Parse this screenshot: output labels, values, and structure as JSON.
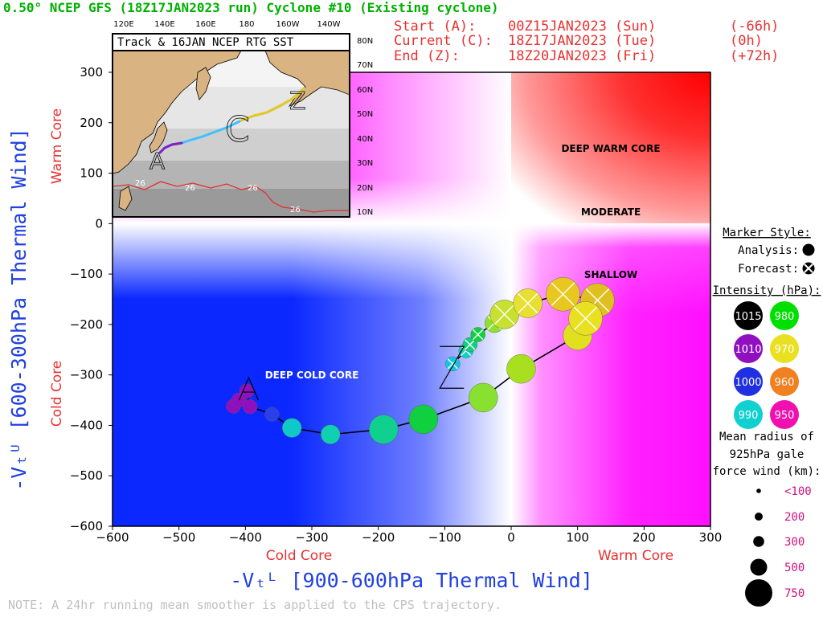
{
  "header": {
    "title": "0.50° NCEP GFS (18Z17JAN2023 run) Cyclone #10 (Existing cyclone)",
    "start": {
      "label": "Start (A):",
      "time": "00Z15JAN2023 (Sun)",
      "offset": "(-66h)"
    },
    "current": {
      "label": "Current (C):",
      "time": "18Z17JAN2023 (Tue)",
      "offset": "(0h)"
    },
    "end": {
      "label": "End (Z):",
      "time": "18Z20JAN2023 (Fri)",
      "offset": "(+72h)"
    }
  },
  "axes": {
    "xlabel": "-Vₜᴸ [900-600hPa Thermal Wind]",
    "ylabel": "-Vₜᵁ [600-300hPa Thermal Wind]",
    "x_left_label": "Cold Core",
    "x_right_label": "Warm Core",
    "y_top_label": "Warm Core",
    "y_bottom_label": "Cold Core"
  },
  "quadrants": {
    "deep_warm": "DEEP WARM CORE",
    "moderate": "MODERATE",
    "shallow": "SHALLOW",
    "deep_cold": "DEEP COLD CORE"
  },
  "inset": {
    "title": "Track & 16JAN NCEP RTG SST",
    "lon_labels": [
      "120E",
      "140E",
      "160E",
      "180",
      "160W",
      "140W"
    ],
    "lat_labels": [
      "80N",
      "70N",
      "60N",
      "50N",
      "40N",
      "30N",
      "20N",
      "10N"
    ],
    "sst_labels": [
      "26",
      "26",
      "26",
      "26"
    ],
    "marks": {
      "start": "A",
      "current": "C",
      "end": "Z"
    }
  },
  "legend": {
    "marker_style_title": "Marker Style:",
    "analysis_label": "Analysis:",
    "forecast_label": "Forecast:",
    "intensity_title": "Intensity (hPa):",
    "intensity_swatches": [
      {
        "value": "1015",
        "color": "#000000"
      },
      {
        "value": "980",
        "color": "#00e000"
      },
      {
        "value": "1010",
        "color": "#9010c0"
      },
      {
        "value": "970",
        "color": "#e8e020"
      },
      {
        "value": "1000",
        "color": "#2030e0"
      },
      {
        "value": "960",
        "color": "#f08020"
      },
      {
        "value": "990",
        "color": "#10d0d0"
      },
      {
        "value": "950",
        "color": "#f010b0"
      }
    ],
    "radius_title_1": "Mean radius of",
    "radius_title_2": "925hPa gale",
    "radius_title_3": "force wind (km):",
    "radius_sizes": [
      "<100",
      "200",
      "300",
      "500",
      "750"
    ]
  },
  "note": "NOTE: A 24hr running mean smoother is applied to the CPS trajectory.",
  "chart_data": {
    "type": "scatter",
    "title": "0.50° NCEP GFS (18Z17JAN2023 run) Cyclone #10 (Existing cyclone)",
    "xlabel": "-Vₜᴸ [900-600hPa Thermal Wind]",
    "ylabel": "-Vₜᵁ [600-300hPa Thermal Wind]",
    "xlim": [
      -600,
      300
    ],
    "ylim": [
      -600,
      300
    ],
    "x_ticks": [
      -600,
      -500,
      -400,
      -300,
      -200,
      -100,
      0,
      100,
      200,
      300
    ],
    "y_ticks": [
      300,
      200,
      100,
      0,
      -100,
      -200,
      -300,
      -400,
      -500,
      -600
    ],
    "grid": false,
    "track_start": {
      "label": "A",
      "x": -395,
      "y": -315
    },
    "track_end": {
      "label": "Z",
      "x": -88,
      "y": -285
    },
    "analysis": [
      {
        "x": -418,
        "y": -362,
        "hpa": 1010,
        "radius_km": 200,
        "color": "#9010c0"
      },
      {
        "x": -410,
        "y": -350,
        "hpa": 1010,
        "radius_km": 200,
        "color": "#9010c0"
      },
      {
        "x": -398,
        "y": -332,
        "hpa": 1010,
        "radius_km": 200,
        "color": "#9010c0"
      },
      {
        "x": -393,
        "y": -363,
        "hpa": 1010,
        "radius_km": 200,
        "color": "#9010c0"
      },
      {
        "x": -360,
        "y": -378,
        "hpa": 1000,
        "radius_km": 200,
        "color": "#2a40e8"
      },
      {
        "x": -330,
        "y": -405,
        "hpa": 990,
        "radius_km": 300,
        "color": "#10c8c8"
      },
      {
        "x": -272,
        "y": -418,
        "hpa": 990,
        "radius_km": 300,
        "color": "#10d0b0"
      },
      {
        "x": -192,
        "y": -408,
        "hpa": 985,
        "radius_km": 500,
        "color": "#10d090"
      },
      {
        "x": -132,
        "y": -388,
        "hpa": 980,
        "radius_km": 500,
        "color": "#10d040"
      },
      {
        "x": -42,
        "y": -345,
        "hpa": 978,
        "radius_km": 500,
        "color": "#88e030"
      },
      {
        "x": 15,
        "y": -288,
        "hpa": 975,
        "radius_km": 500,
        "color": "#a8e020"
      },
      {
        "x": 100,
        "y": -222,
        "hpa": 972,
        "radius_km": 500,
        "color": "#e0e020"
      }
    ],
    "forecast": [
      {
        "x": 112,
        "y": -188,
        "hpa": 970,
        "radius_km": 750,
        "color": "#e8e020"
      },
      {
        "x": 130,
        "y": -152,
        "hpa": 968,
        "radius_km": 750,
        "color": "#e0c020"
      },
      {
        "x": 78,
        "y": -140,
        "hpa": 966,
        "radius_km": 750,
        "color": "#e8c820"
      },
      {
        "x": 25,
        "y": -158,
        "hpa": 970,
        "radius_km": 500,
        "color": "#e8e030"
      },
      {
        "x": -10,
        "y": -180,
        "hpa": 974,
        "radius_km": 500,
        "color": "#c8e030"
      },
      {
        "x": -25,
        "y": -197,
        "hpa": 976,
        "radius_km": 300,
        "color": "#90e030"
      },
      {
        "x": -50,
        "y": -220,
        "hpa": 980,
        "radius_km": 200,
        "color": "#10d040"
      },
      {
        "x": -62,
        "y": -240,
        "hpa": 985,
        "radius_km": 200,
        "color": "#10d080"
      },
      {
        "x": -68,
        "y": -252,
        "hpa": 988,
        "radius_km": 200,
        "color": "#10d0c0"
      },
      {
        "x": -88,
        "y": -278,
        "hpa": 990,
        "radius_km": 200,
        "color": "#10c8e0"
      }
    ]
  }
}
